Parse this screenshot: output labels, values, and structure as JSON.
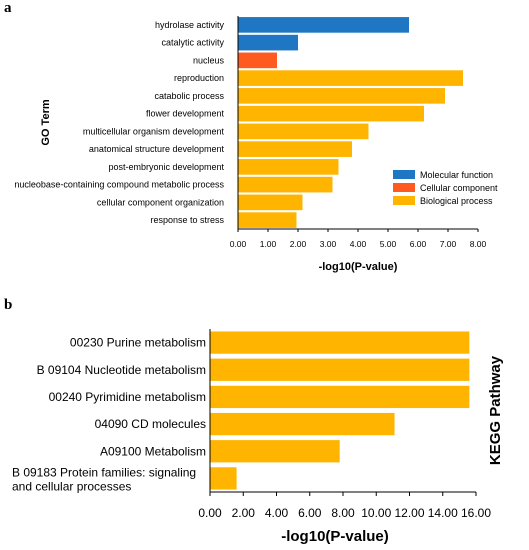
{
  "chart_data": [
    {
      "panel": "a",
      "type": "bar",
      "orientation": "horizontal",
      "xlabel": "-log10(P-value)",
      "ylabel": "GO Term",
      "xlim": [
        0,
        8
      ],
      "xticks": [
        "0.00",
        "1.00",
        "2.00",
        "3.00",
        "4.00",
        "5.00",
        "6.00",
        "7.00",
        "8.00"
      ],
      "legend_position": "bottom-right",
      "grid": false,
      "legend": [
        {
          "name": "Molecular function",
          "color": "#1f77c4"
        },
        {
          "name": "Cellular component",
          "color": "#ff5a1f"
        },
        {
          "name": "Biological process",
          "color": "#ffb400"
        }
      ],
      "bars": [
        {
          "label": "hydrolase activity",
          "value": 5.7,
          "group": 0
        },
        {
          "label": "catalytic activity",
          "value": 2.0,
          "group": 0
        },
        {
          "label": "nucleus",
          "value": 1.3,
          "group": 1
        },
        {
          "label": "reproduction",
          "value": 7.5,
          "group": 2
        },
        {
          "label": "catabolic process",
          "value": 6.9,
          "group": 2
        },
        {
          "label": "flower development",
          "value": 6.2,
          "group": 2
        },
        {
          "label": "multicellular organism development",
          "value": 4.35,
          "group": 2
        },
        {
          "label": "anatomical structure development",
          "value": 3.8,
          "group": 2
        },
        {
          "label": "post-embryonic development",
          "value": 3.35,
          "group": 2
        },
        {
          "label": "nucleobase-containing compound metabolic process",
          "value": 3.15,
          "group": 2
        },
        {
          "label": "cellular component organization",
          "value": 2.15,
          "group": 2
        },
        {
          "label": "response to stress",
          "value": 1.95,
          "group": 2
        }
      ]
    },
    {
      "panel": "b",
      "type": "bar",
      "orientation": "horizontal",
      "xlabel": "-log10(P-value)",
      "ylabel": "KEGG Pathway",
      "xlim": [
        0,
        16
      ],
      "xticks": [
        "0.00",
        "2.00",
        "4.00",
        "6.00",
        "8.00",
        "10.00",
        "12.00",
        "14.00",
        "16.00"
      ],
      "grid": false,
      "bar_color": "#ffb400",
      "bars": [
        {
          "lines": [
            "00230 Purine metabolism"
          ],
          "value": 15.6
        },
        {
          "lines": [
            "B  09104 Nucleotide metabolism"
          ],
          "value": 15.6
        },
        {
          "lines": [
            "00240 Pyrimidine metabolism"
          ],
          "value": 15.6
        },
        {
          "lines": [
            "04090 CD molecules"
          ],
          "value": 11.1
        },
        {
          "lines": [
            "A09100 Metabolism"
          ],
          "value": 7.8
        },
        {
          "lines": [
            "B  09183 Protein families: signaling",
            "and cellular processes"
          ],
          "value": 1.6
        }
      ]
    }
  ]
}
